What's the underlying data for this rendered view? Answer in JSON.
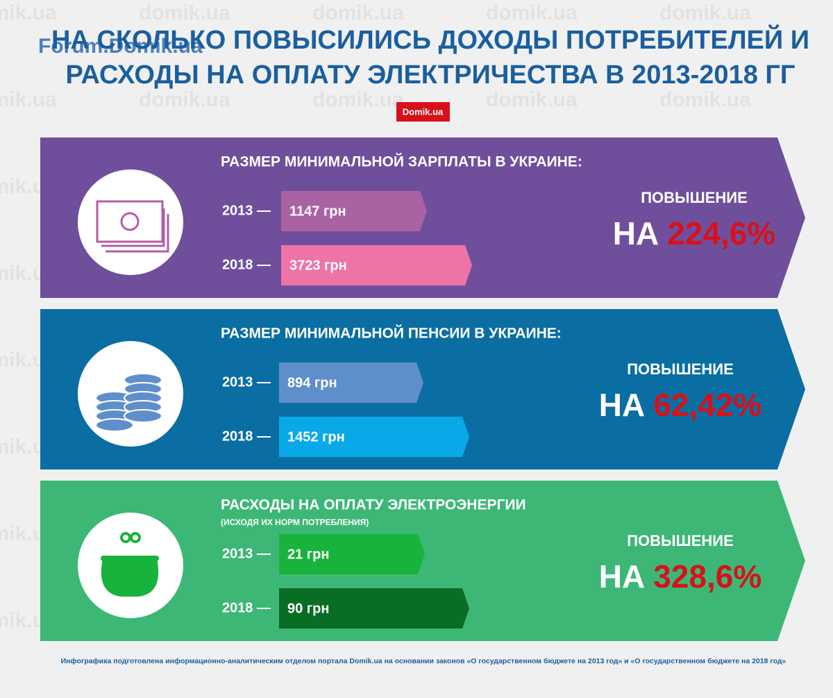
{
  "header": {
    "title_lines": [
      "НА СКОЛЬКО ПОВЫСИЛИСЬ ДОХОДЫ ПОТРЕБИТЕЛЕЙ И",
      "РАСХОДЫ НА ОПЛАТУ ЭЛЕКТРИЧЕСТВА В 2013-2018 ГГ"
    ],
    "badge": "Domik.ua",
    "forum_logo": "Forum.Domik.ua",
    "watermark": "domik.ua"
  },
  "sections": [
    {
      "heading": "РАЗМЕР МИНИМАЛЬНОЙ ЗАРПЛАТЫ В УКРАИНЕ:",
      "rows": [
        {
          "year": "2013 —",
          "amount": "1147 грн"
        },
        {
          "year": "2018 —",
          "amount": "3723 грн"
        }
      ],
      "increase_label": "ПОВЫШЕНИЕ",
      "increase_prefix": "НА",
      "increase_value": "224,6%"
    },
    {
      "heading": "РАЗМЕР МИНИМАЛЬНОЙ ПЕНСИИ В УКРАИНЕ:",
      "rows": [
        {
          "year": "2013 —",
          "amount": "894 грн"
        },
        {
          "year": "2018 —",
          "amount": "1452 грн"
        }
      ],
      "increase_label": "ПОВЫШЕНИЕ",
      "increase_prefix": "НА",
      "increase_value": "62,42%"
    },
    {
      "heading": "РАСХОДЫ НА ОПЛАТУ ЭЛЕКТРОЭНЕРГИИ",
      "subheading": "(ИСХОДЯ ИХ НОРМ ПОТРЕБЛЕНИЯ)",
      "rows": [
        {
          "year": "2013 —",
          "amount": "21 грн"
        },
        {
          "year": "2018 —",
          "amount": "90 грн"
        }
      ],
      "increase_label": "ПОВЫШЕНИЕ",
      "increase_prefix": "НА",
      "increase_value": "328,6%"
    }
  ],
  "footer": "Инфографика подготовлена информационно-аналитическим отделом портала Domik.ua на основании законов «О государственном бюджете на 2013 год» и «О государственном бюджете на 2018 год»"
}
